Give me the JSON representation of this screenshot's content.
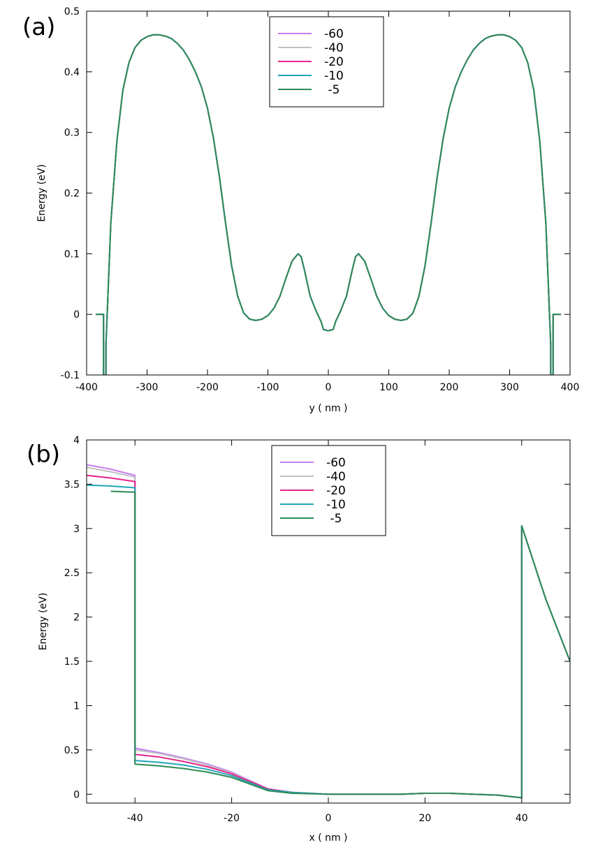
{
  "figure": {
    "panel_labels": [
      "(a)",
      "(b)"
    ]
  },
  "chart_data": [
    {
      "type": "line",
      "panel": "(a)",
      "xlabel": "y ( nm )",
      "ylabel": "Energy (eV)",
      "xlim": [
        -400,
        400
      ],
      "ylim": [
        -0.1,
        0.5
      ],
      "xticks": [
        -400,
        -300,
        -200,
        -100,
        0,
        100,
        200,
        300,
        400
      ],
      "yticks": [
        -0.1,
        0,
        0.1,
        0.2,
        0.3,
        0.4,
        0.5
      ],
      "xtick_labels": [
        "-400",
        "-300",
        "-200",
        "-100",
        "0",
        "100",
        "200",
        "300",
        "400"
      ],
      "ytick_labels": [
        "-0.1",
        "0",
        "0.1",
        "0.2",
        "0.3",
        "0.4",
        "0.5"
      ],
      "grid": false,
      "legend_position": "top-center",
      "legend": [
        "-60",
        "-40",
        "-20",
        "-10",
        "-5"
      ],
      "colors": [
        "#c77df3",
        "#c0c0c0",
        "#e8248a",
        "#21a6b8",
        "#2e8b57"
      ],
      "note_overlap": "all five curves coincide in panel (a)",
      "series": [
        {
          "name": "-60",
          "x": [
            -385,
            -372,
            -372,
            -368,
            -368,
            -360,
            -350,
            -340,
            -330,
            -320,
            -310,
            -300,
            -290,
            -280,
            -270,
            -260,
            -250,
            -240,
            -230,
            -220,
            -210,
            -200,
            -190,
            -180,
            -170,
            -160,
            -150,
            -140,
            -130,
            -120,
            -110,
            -100,
            -90,
            -80,
            -70,
            -60,
            -50,
            -45,
            -40,
            -30,
            -20,
            -12,
            -8,
            0,
            8,
            12,
            20,
            30,
            40,
            45,
            50,
            60,
            70,
            80,
            90,
            100,
            110,
            120,
            130,
            140,
            150,
            160,
            170,
            180,
            190,
            200,
            210,
            220,
            230,
            240,
            250,
            260,
            270,
            280,
            290,
            300,
            310,
            320,
            330,
            340,
            350,
            360,
            368,
            368,
            372,
            372,
            385
          ],
          "y": [
            0,
            0,
            -0.1,
            -0.1,
            -0.05,
            0.15,
            0.285,
            0.37,
            0.415,
            0.44,
            0.452,
            0.458,
            0.461,
            0.461,
            0.459,
            0.455,
            0.447,
            0.436,
            0.42,
            0.4,
            0.375,
            0.34,
            0.29,
            0.225,
            0.15,
            0.08,
            0.03,
            0.002,
            -0.008,
            -0.01,
            -0.008,
            -0.002,
            0.01,
            0.03,
            0.06,
            0.088,
            0.1,
            0.095,
            0.075,
            0.03,
            0.005,
            -0.012,
            -0.025,
            -0.027,
            -0.025,
            -0.012,
            0.005,
            0.03,
            0.075,
            0.095,
            0.1,
            0.088,
            0.06,
            0.03,
            0.01,
            -0.002,
            -0.008,
            -0.01,
            -0.008,
            0.002,
            0.03,
            0.08,
            0.15,
            0.225,
            0.29,
            0.34,
            0.375,
            0.4,
            0.42,
            0.436,
            0.447,
            0.455,
            0.459,
            0.461,
            0.461,
            0.458,
            0.452,
            0.44,
            0.415,
            0.37,
            0.285,
            0.15,
            -0.05,
            -0.1,
            -0.1,
            0,
            0
          ]
        },
        {
          "name": "-40",
          "same_as": "-60"
        },
        {
          "name": "-20",
          "same_as": "-60"
        },
        {
          "name": "-10",
          "same_as": "-60"
        },
        {
          "name": "-5",
          "same_as": "-60"
        }
      ]
    },
    {
      "type": "line",
      "panel": "(b)",
      "xlabel": "x ( nm )",
      "ylabel": "Energy (eV)",
      "xlim": [
        -50,
        50
      ],
      "ylim": [
        -0.1,
        4
      ],
      "xticks": [
        -40,
        -20,
        0,
        20,
        40
      ],
      "yticks": [
        0,
        0.5,
        1,
        1.5,
        2,
        2.5,
        3,
        3.5,
        4
      ],
      "xtick_labels": [
        "-40",
        "-20",
        "0",
        "20",
        "40"
      ],
      "ytick_labels": [
        "0",
        "0.5",
        "1",
        "1.5",
        "2",
        "2.5",
        "3",
        "3.5",
        "4"
      ],
      "grid": false,
      "legend_position": "top-center",
      "legend": [
        "-60",
        "-40",
        "-20",
        "-10",
        "-5"
      ],
      "colors": [
        "#c77df3",
        "#c0c0c0",
        "#e8248a",
        "#21a6b8",
        "#2e8b57"
      ],
      "series": [
        {
          "name": "-60",
          "x": [
            -50,
            -45,
            -40,
            -40,
            -40,
            -35,
            -30,
            -25,
            -20,
            -12.5,
            -7.5,
            0,
            10,
            15,
            20,
            25,
            30,
            35,
            40,
            40,
            45,
            50
          ],
          "y": [
            3.72,
            3.67,
            3.6,
            0.52,
            0.52,
            0.47,
            0.41,
            0.34,
            0.25,
            0.06,
            0.02,
            0.0,
            0.0,
            0.0,
            0.01,
            0.01,
            0.0,
            -0.01,
            -0.04,
            3.03,
            2.2,
            1.5
          ]
        },
        {
          "name": "-40",
          "x": [
            -50,
            -45,
            -40,
            -40,
            -40,
            -35,
            -30,
            -25,
            -20,
            -12.5,
            -7.5,
            0,
            10,
            15,
            20,
            25,
            30,
            35,
            40,
            40,
            45,
            50
          ],
          "y": [
            3.69,
            3.64,
            3.58,
            0.5,
            0.5,
            0.46,
            0.4,
            0.33,
            0.24,
            0.06,
            0.02,
            0.0,
            0.0,
            0.0,
            0.01,
            0.01,
            0.0,
            -0.01,
            -0.04,
            3.03,
            2.2,
            1.5
          ]
        },
        {
          "name": "-20",
          "x": [
            -50,
            -45,
            -40,
            -40,
            -40,
            -35,
            -30,
            -25,
            -20,
            -12.5,
            -7.5,
            0,
            10,
            15,
            20,
            25,
            30,
            35,
            40,
            40,
            45,
            50
          ],
          "y": [
            3.6,
            3.57,
            3.53,
            0.45,
            0.45,
            0.42,
            0.37,
            0.31,
            0.23,
            0.06,
            0.02,
            0.0,
            0.0,
            0.0,
            0.01,
            0.01,
            0.0,
            -0.01,
            -0.04,
            3.03,
            2.2,
            1.5
          ]
        },
        {
          "name": "-10",
          "x": [
            -50,
            -45,
            -40,
            -40,
            -40,
            -35,
            -30,
            -25,
            -20,
            -12.5,
            -7.5,
            0,
            10,
            15,
            20,
            25,
            30,
            35,
            40,
            40,
            45,
            50
          ],
          "y": [
            3.49,
            3.48,
            3.46,
            0.38,
            0.38,
            0.36,
            0.33,
            0.28,
            0.21,
            0.05,
            0.02,
            0.0,
            0.0,
            0.0,
            0.01,
            0.01,
            0.0,
            -0.01,
            -0.04,
            3.03,
            2.2,
            1.5
          ]
        },
        {
          "name": "-5",
          "x": [
            -45,
            -40,
            -40,
            -40,
            -35,
            -30,
            -25,
            -20,
            -12.5,
            -7.5,
            0,
            10,
            15,
            20,
            25,
            30,
            35,
            40,
            40,
            45,
            50
          ],
          "y": [
            3.42,
            3.41,
            0.34,
            0.34,
            0.32,
            0.29,
            0.25,
            0.19,
            0.04,
            0.01,
            0.0,
            0.0,
            0.0,
            0.01,
            0.01,
            0.0,
            -0.01,
            -0.04,
            3.03,
            2.2,
            1.5
          ]
        }
      ]
    }
  ]
}
